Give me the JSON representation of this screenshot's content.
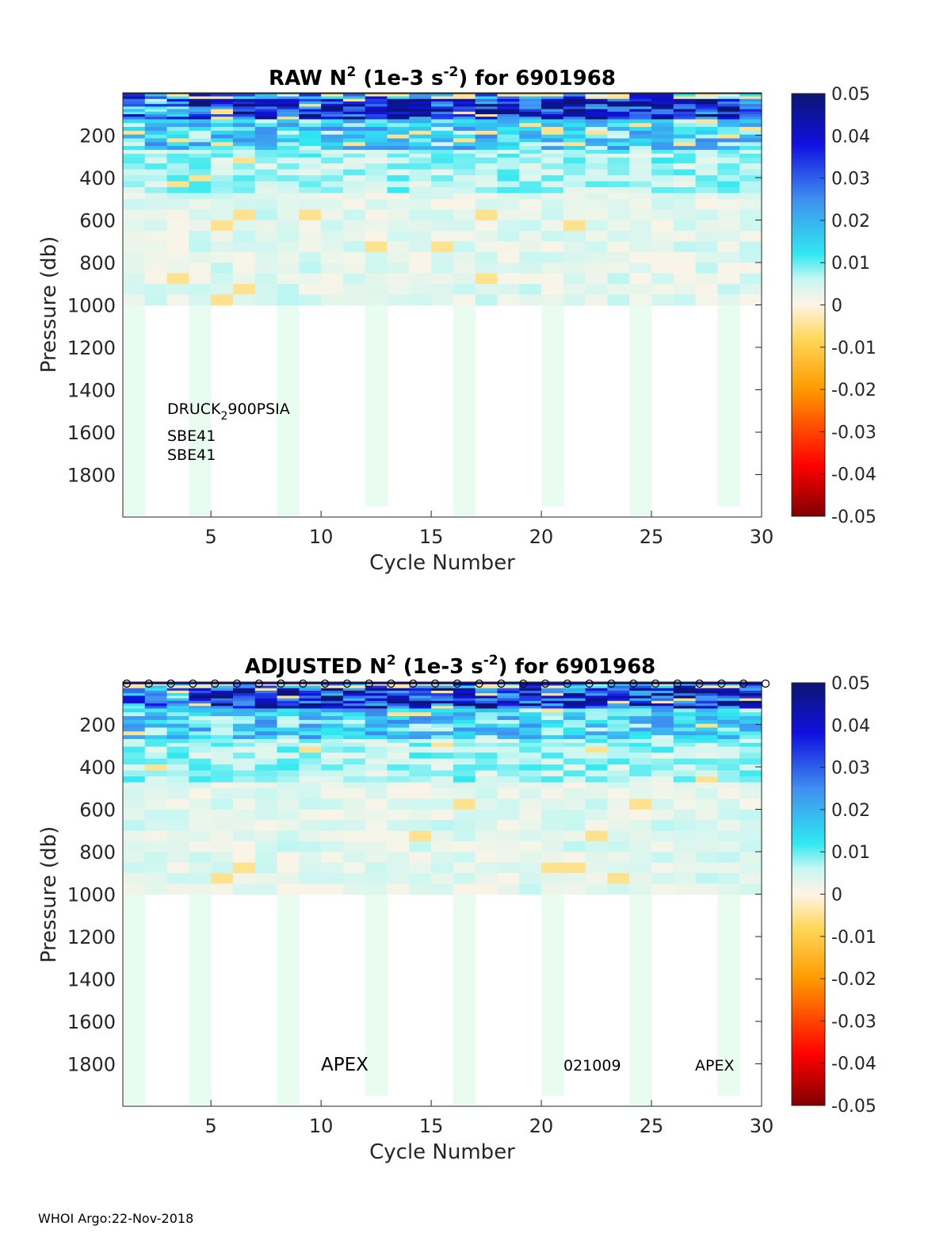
{
  "footer": "WHOI Argo:22-Nov-2018",
  "colors": {
    "missing_fill": "#e8fdf0",
    "axis": "#262626",
    "marker_line": "#00008b"
  },
  "chart_data": [
    {
      "type": "heatmap",
      "title_main": "RAW N",
      "title_sup": "2",
      "title_mid": " (1e-3 s",
      "title_sup2": "-2",
      "title_end": ") for 6901968",
      "xlabel": "Cycle Number",
      "ylabel": "Pressure (db)",
      "xlim": [
        1,
        30
      ],
      "ylim": [
        0,
        2000
      ],
      "y_reversed": true,
      "xticks": [
        5,
        10,
        15,
        20,
        25,
        30
      ],
      "yticks": [
        200,
        400,
        600,
        800,
        1000,
        1200,
        1400,
        1600,
        1800
      ],
      "colorbar": {
        "ticks": [
          "0.05",
          "0.04",
          "0.03",
          "0.02",
          "0.01",
          "0",
          "-0.01",
          "-0.02",
          "-0.03",
          "-0.04",
          "-0.05"
        ],
        "range": [
          -0.05,
          0.05
        ],
        "colormap": "jet"
      },
      "deep_missing_cycles": [
        1,
        4,
        8,
        12,
        16,
        20,
        24,
        28
      ],
      "annotations": [
        {
          "text": "DRUCK",
          "sub": "2",
          "text_after": "900PSIA"
        },
        {
          "text": "SBE41"
        },
        {
          "text": "SBE41"
        }
      ]
    },
    {
      "type": "heatmap",
      "title_main": "ADJUSTED N",
      "title_sup": "2",
      "title_mid": " (1e-3 s",
      "title_sup2": "-2",
      "title_end": ") for 6901968",
      "xlabel": "Cycle Number",
      "ylabel": "Pressure (db)",
      "xlim": [
        1,
        30
      ],
      "ylim": [
        0,
        2000
      ],
      "y_reversed": true,
      "xticks": [
        5,
        10,
        15,
        20,
        25,
        30
      ],
      "yticks": [
        200,
        400,
        600,
        800,
        1000,
        1200,
        1400,
        1600,
        1800
      ],
      "colorbar": {
        "ticks": [
          "0.05",
          "0.04",
          "0.03",
          "0.02",
          "0.01",
          "0",
          "-0.01",
          "-0.02",
          "-0.03",
          "-0.04",
          "-0.05"
        ],
        "range": [
          -0.05,
          0.05
        ],
        "colormap": "jet"
      },
      "deep_missing_cycles": [
        1,
        4,
        8,
        12,
        16,
        20,
        24,
        28
      ],
      "surface_markers": "o",
      "annotations": [
        {
          "text": "APEX"
        },
        {
          "text": "021009"
        },
        {
          "text": "APEX"
        }
      ]
    }
  ]
}
